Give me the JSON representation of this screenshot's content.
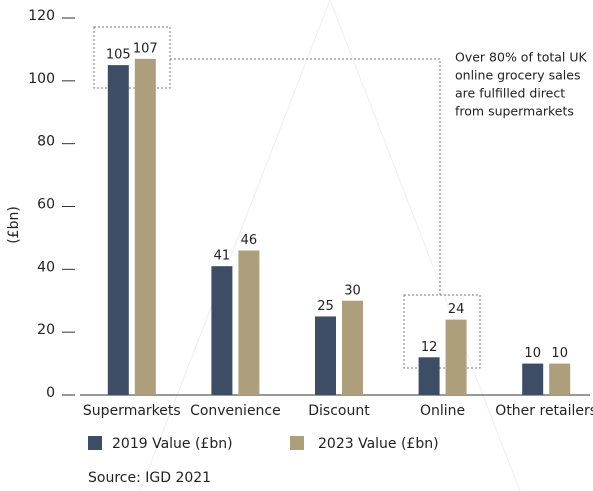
{
  "chart_data": {
    "type": "bar",
    "categories": [
      "Supermarkets",
      "Convenience",
      "Discount",
      "Online",
      "Other retailers"
    ],
    "series": [
      {
        "name": "2019 Value (£bn)",
        "color": "#3d4d66",
        "values": [
          105,
          41,
          25,
          12,
          10
        ]
      },
      {
        "name": "2023 Value (£bn)",
        "color": "#ae9f7c",
        "values": [
          107,
          46,
          30,
          24,
          10
        ]
      }
    ],
    "y_label": "(£bn)",
    "ylim": [
      0,
      120
    ],
    "yticks": [
      0,
      20,
      40,
      60,
      80,
      100,
      120
    ],
    "annotation": [
      "Over 80% of total UK",
      "online grocery sales",
      "are fulfilled direct",
      "from supermarkets"
    ],
    "source": "Source: IGD 2021"
  }
}
